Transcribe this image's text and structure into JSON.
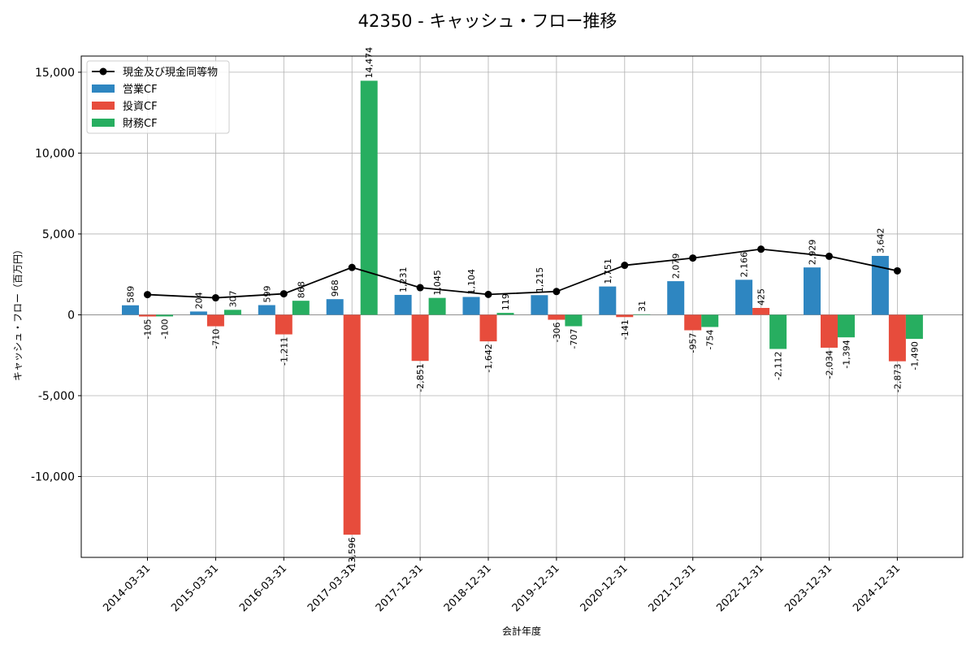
{
  "chart_data": {
    "type": "bar",
    "title": "42350 - キャッシュ・フロー推移",
    "xlabel": "会計年度",
    "ylabel": "キャッシュ・フロー（百万円）",
    "ylim": [
      -15000,
      16000
    ],
    "yticks": [
      -10000,
      -5000,
      0,
      5000,
      10000,
      15000
    ],
    "ytick_labels": [
      "-10,000",
      "-5,000",
      "0",
      "5,000",
      "10,000",
      "15,000"
    ],
    "grid": true,
    "legend_position": "top-left",
    "categories": [
      "2014-03-31",
      "2015-03-31",
      "2016-03-31",
      "2017-03-31",
      "2017-12-31",
      "2018-12-31",
      "2019-12-31",
      "2020-12-31",
      "2021-12-31",
      "2022-12-31",
      "2023-12-31",
      "2024-12-31"
    ],
    "series": [
      {
        "name": "営業CF",
        "color": "#2e86c1",
        "values": [
          589,
          204,
          599,
          968,
          1231,
          1104,
          1215,
          1751,
          2079,
          2166,
          2929,
          3642
        ],
        "labels": [
          "589",
          "204",
          "599",
          "968",
          "1,231",
          "1,104",
          "1,215",
          "1,751",
          "2,079",
          "2,166",
          "2,929",
          "3,642"
        ]
      },
      {
        "name": "投資CF",
        "color": "#e74c3c",
        "values": [
          -105,
          -710,
          -1211,
          -13596,
          -2851,
          -1642,
          -306,
          -141,
          -957,
          425,
          -2034,
          -2873
        ],
        "labels": [
          "-105",
          "-710",
          "-1,211",
          "-13,596",
          "-2,851",
          "-1,642",
          "-306",
          "-141",
          "-957",
          "425",
          "-2,034",
          "-2,873"
        ]
      },
      {
        "name": "財務CF",
        "color": "#27ae60",
        "values": [
          -100,
          307,
          868,
          14474,
          1045,
          119,
          -707,
          31,
          -754,
          -2112,
          -1394,
          -1490
        ],
        "labels": [
          "-100",
          "307",
          "868",
          "14,474",
          "1,045",
          "119",
          "-707",
          "31",
          "-754",
          "-2,112",
          "-1,394",
          "-1,490"
        ]
      }
    ],
    "line": {
      "name": "現金及び現金同等物",
      "color": "#000000",
      "values": [
        1250,
        1050,
        1300,
        2930,
        1680,
        1260,
        1440,
        3060,
        3510,
        4060,
        3620,
        2720
      ]
    }
  }
}
